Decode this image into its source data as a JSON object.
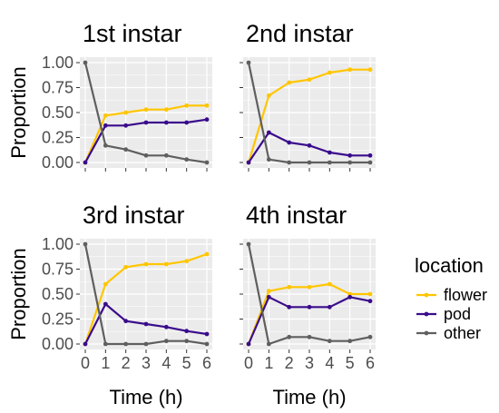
{
  "chart_data": {
    "type": "line",
    "facets": [
      "1st instar",
      "2nd instar",
      "3rd instar",
      "4th instar"
    ],
    "x": [
      0,
      1,
      2,
      3,
      4,
      5,
      6
    ],
    "xlabel": "Time (h)",
    "ylabel": "Proportion",
    "xlim": [
      0,
      6
    ],
    "ylim": [
      0,
      1
    ],
    "x_ticks": [
      "0",
      "1",
      "2",
      "3",
      "4",
      "5",
      "6"
    ],
    "y_ticks": [
      "0.00",
      "0.25",
      "0.50",
      "0.75",
      "1.00"
    ],
    "grid": true,
    "legend": {
      "title": "location",
      "position": "right",
      "entries": [
        "flower",
        "pod",
        "other"
      ]
    },
    "colors": {
      "flower": "#FFC600",
      "pod": "#3A0C8C",
      "other": "#5F5F5F",
      "panel_bg": "#EBEBEB",
      "grid": "#FFFFFF"
    },
    "panels": [
      {
        "title": "1st instar",
        "series": [
          {
            "name": "flower",
            "values": [
              0,
              0.47,
              0.5,
              0.53,
              0.53,
              0.57,
              0.57
            ]
          },
          {
            "name": "pod",
            "values": [
              0,
              0.37,
              0.37,
              0.4,
              0.4,
              0.4,
              0.43
            ]
          },
          {
            "name": "other",
            "values": [
              1.0,
              0.17,
              0.13,
              0.07,
              0.07,
              0.03,
              0
            ]
          }
        ]
      },
      {
        "title": "2nd instar",
        "series": [
          {
            "name": "flower",
            "values": [
              0,
              0.67,
              0.8,
              0.83,
              0.9,
              0.93,
              0.93
            ]
          },
          {
            "name": "pod",
            "values": [
              0,
              0.3,
              0.2,
              0.17,
              0.1,
              0.07,
              0.07
            ]
          },
          {
            "name": "other",
            "values": [
              1.0,
              0.03,
              0,
              0,
              0,
              0,
              0
            ]
          }
        ]
      },
      {
        "title": "3rd instar",
        "series": [
          {
            "name": "flower",
            "values": [
              0,
              0.6,
              0.77,
              0.8,
              0.8,
              0.83,
              0.9
            ]
          },
          {
            "name": "pod",
            "values": [
              0,
              0.4,
              0.23,
              0.2,
              0.17,
              0.13,
              0.1
            ]
          },
          {
            "name": "other",
            "values": [
              1.0,
              0,
              0,
              0,
              0.03,
              0.03,
              0
            ]
          }
        ]
      },
      {
        "title": "4th instar",
        "series": [
          {
            "name": "flower",
            "values": [
              0,
              0.53,
              0.57,
              0.57,
              0.6,
              0.5,
              0.5
            ]
          },
          {
            "name": "pod",
            "values": [
              0,
              0.47,
              0.37,
              0.37,
              0.37,
              0.47,
              0.43
            ]
          },
          {
            "name": "other",
            "values": [
              1.0,
              0,
              0.07,
              0.07,
              0.03,
              0.03,
              0.07
            ]
          }
        ]
      }
    ]
  }
}
